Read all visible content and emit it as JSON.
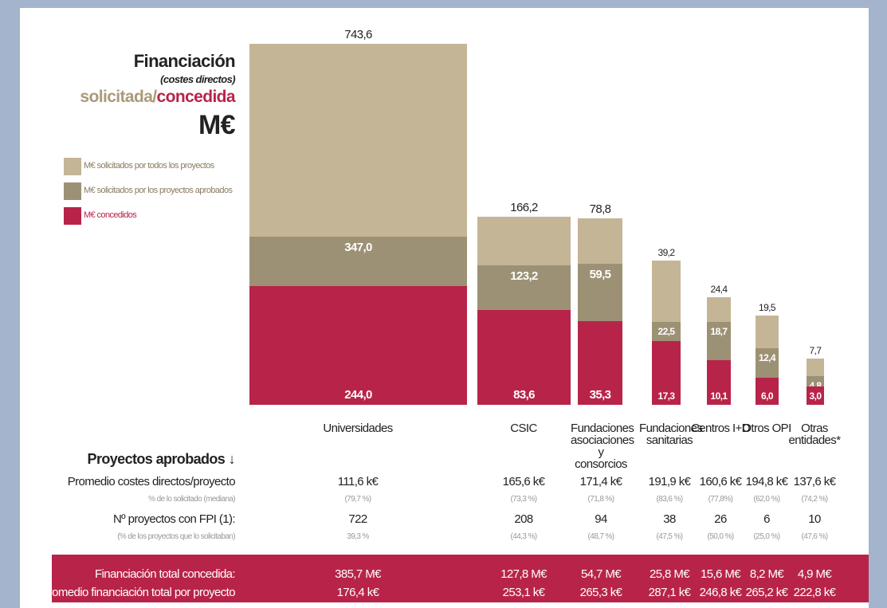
{
  "chart_data": {
    "type": "bar",
    "title": "Financiación",
    "subtitle": "(costes directos)",
    "title_requested": "solicitada/",
    "title_granted": "concedida",
    "unit": "M€",
    "categories": [
      "Universidades",
      "CSIC",
      "Fundaciones asociaciones y consorcios",
      "Fundaciones sanitarias",
      "Centros I+D",
      "Otros OPI",
      "Otras entidades*"
    ],
    "series": [
      {
        "name": "M€ solicitados por todos los proyectos",
        "color": "#c4b597",
        "values": [
          743.6,
          166.2,
          78.8,
          39.2,
          24.4,
          19.5,
          7.7
        ],
        "value_labels": [
          "743,6",
          "166,2",
          "78,8",
          "39,2",
          "24,4",
          "19,5",
          "7,7"
        ]
      },
      {
        "name": "M€ solicitados por los proyectos aprobados",
        "color": "#9d9175",
        "values": [
          347.0,
          123.2,
          59.5,
          22.5,
          18.7,
          12.4,
          4.8
        ],
        "value_labels": [
          "347,0",
          "123,2",
          "59,5",
          "22,5",
          "18,7",
          "12,4",
          "4,8"
        ]
      },
      {
        "name": "M€ concedidos",
        "color": "#b82449",
        "values": [
          244.0,
          83.6,
          35.3,
          17.3,
          10.1,
          6.0,
          3.0
        ],
        "value_labels": [
          "244,0",
          "83,6",
          "35,3",
          "17,3",
          "10,1",
          "6,0",
          "3,0"
        ]
      }
    ]
  },
  "table": {
    "header": "Proyectos aprobados ↓",
    "rows": [
      {
        "label": "Promedio costes directos/proyecto",
        "cells": [
          "111,6 k€",
          "165,6 k€",
          "171,4 k€",
          "191,9 k€",
          "160,6 k€",
          "194,8 k€",
          "137,6 k€"
        ]
      },
      {
        "label": "% de lo solicitado (mediana)",
        "cells": [
          "(79,7 %)",
          "(73,3 %)",
          "(71,8 %)",
          "(83,6 %)",
          "(77,8%)",
          "(62,0 %)",
          "(74,2 %)"
        ]
      },
      {
        "label": "Nº proyectos con FPI (1):",
        "cells": [
          "722",
          "208",
          "94",
          "38",
          "26",
          "6",
          "10"
        ]
      },
      {
        "label": "(% de los proyectos que lo solicitaban)",
        "cells": [
          "39,3 %",
          "(44,3 %)",
          "(48,7 %)",
          "(47,5 %)",
          "(50,0 %)",
          "(25,0 %)",
          "(47,6 %)"
        ]
      }
    ],
    "band_rows": [
      {
        "label": "Financiación total concedida:",
        "cells": [
          "385,7 M€",
          "127,8 M€",
          "54,7 M€",
          "25,8 M€",
          "15,6 M€",
          "8,2 M€",
          "4,9 M€"
        ]
      },
      {
        "label": "Promedio financiación total por proyecto",
        "cells": [
          "176,4 k€",
          "253,1 k€",
          "265,3 k€",
          "287,1 k€",
          "246,8 k€",
          "265,2 k€",
          "222,8 k€"
        ]
      }
    ]
  }
}
